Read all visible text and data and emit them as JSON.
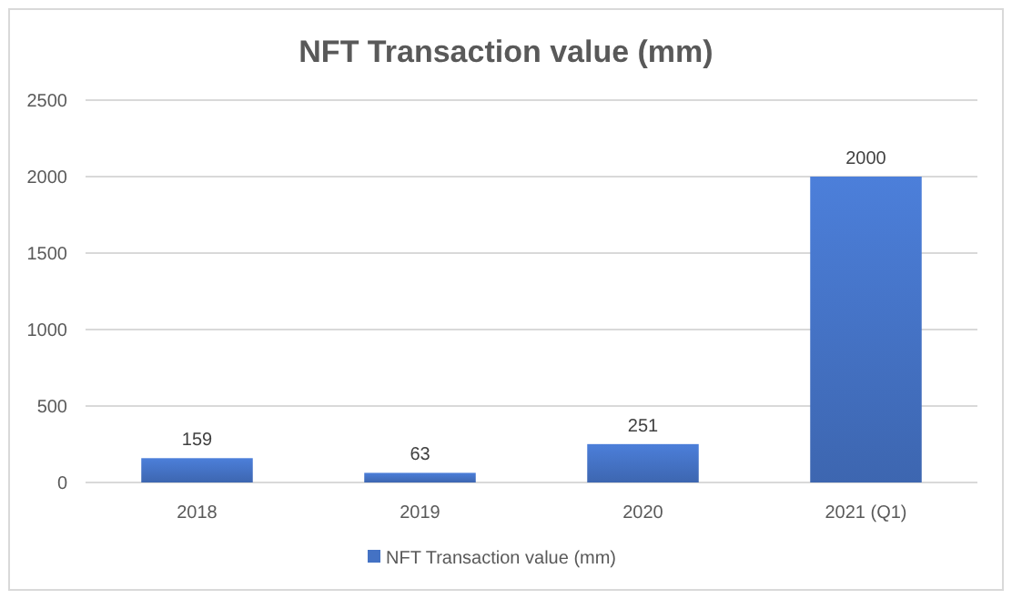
{
  "chart_data": {
    "type": "bar",
    "title": "NFT Transaction value (mm)",
    "categories": [
      "2018",
      "2019",
      "2020",
      "2021 (Q1)"
    ],
    "series": [
      {
        "name": "NFT Transaction value (mm)",
        "color": "#4472c4",
        "values": [
          159,
          63,
          251,
          2000
        ]
      }
    ],
    "ylim": [
      0,
      2500
    ],
    "yticks": [
      0,
      500,
      1000,
      1500,
      2000,
      2500
    ],
    "grid": "y",
    "data_labels": true,
    "legend": "bottom"
  }
}
